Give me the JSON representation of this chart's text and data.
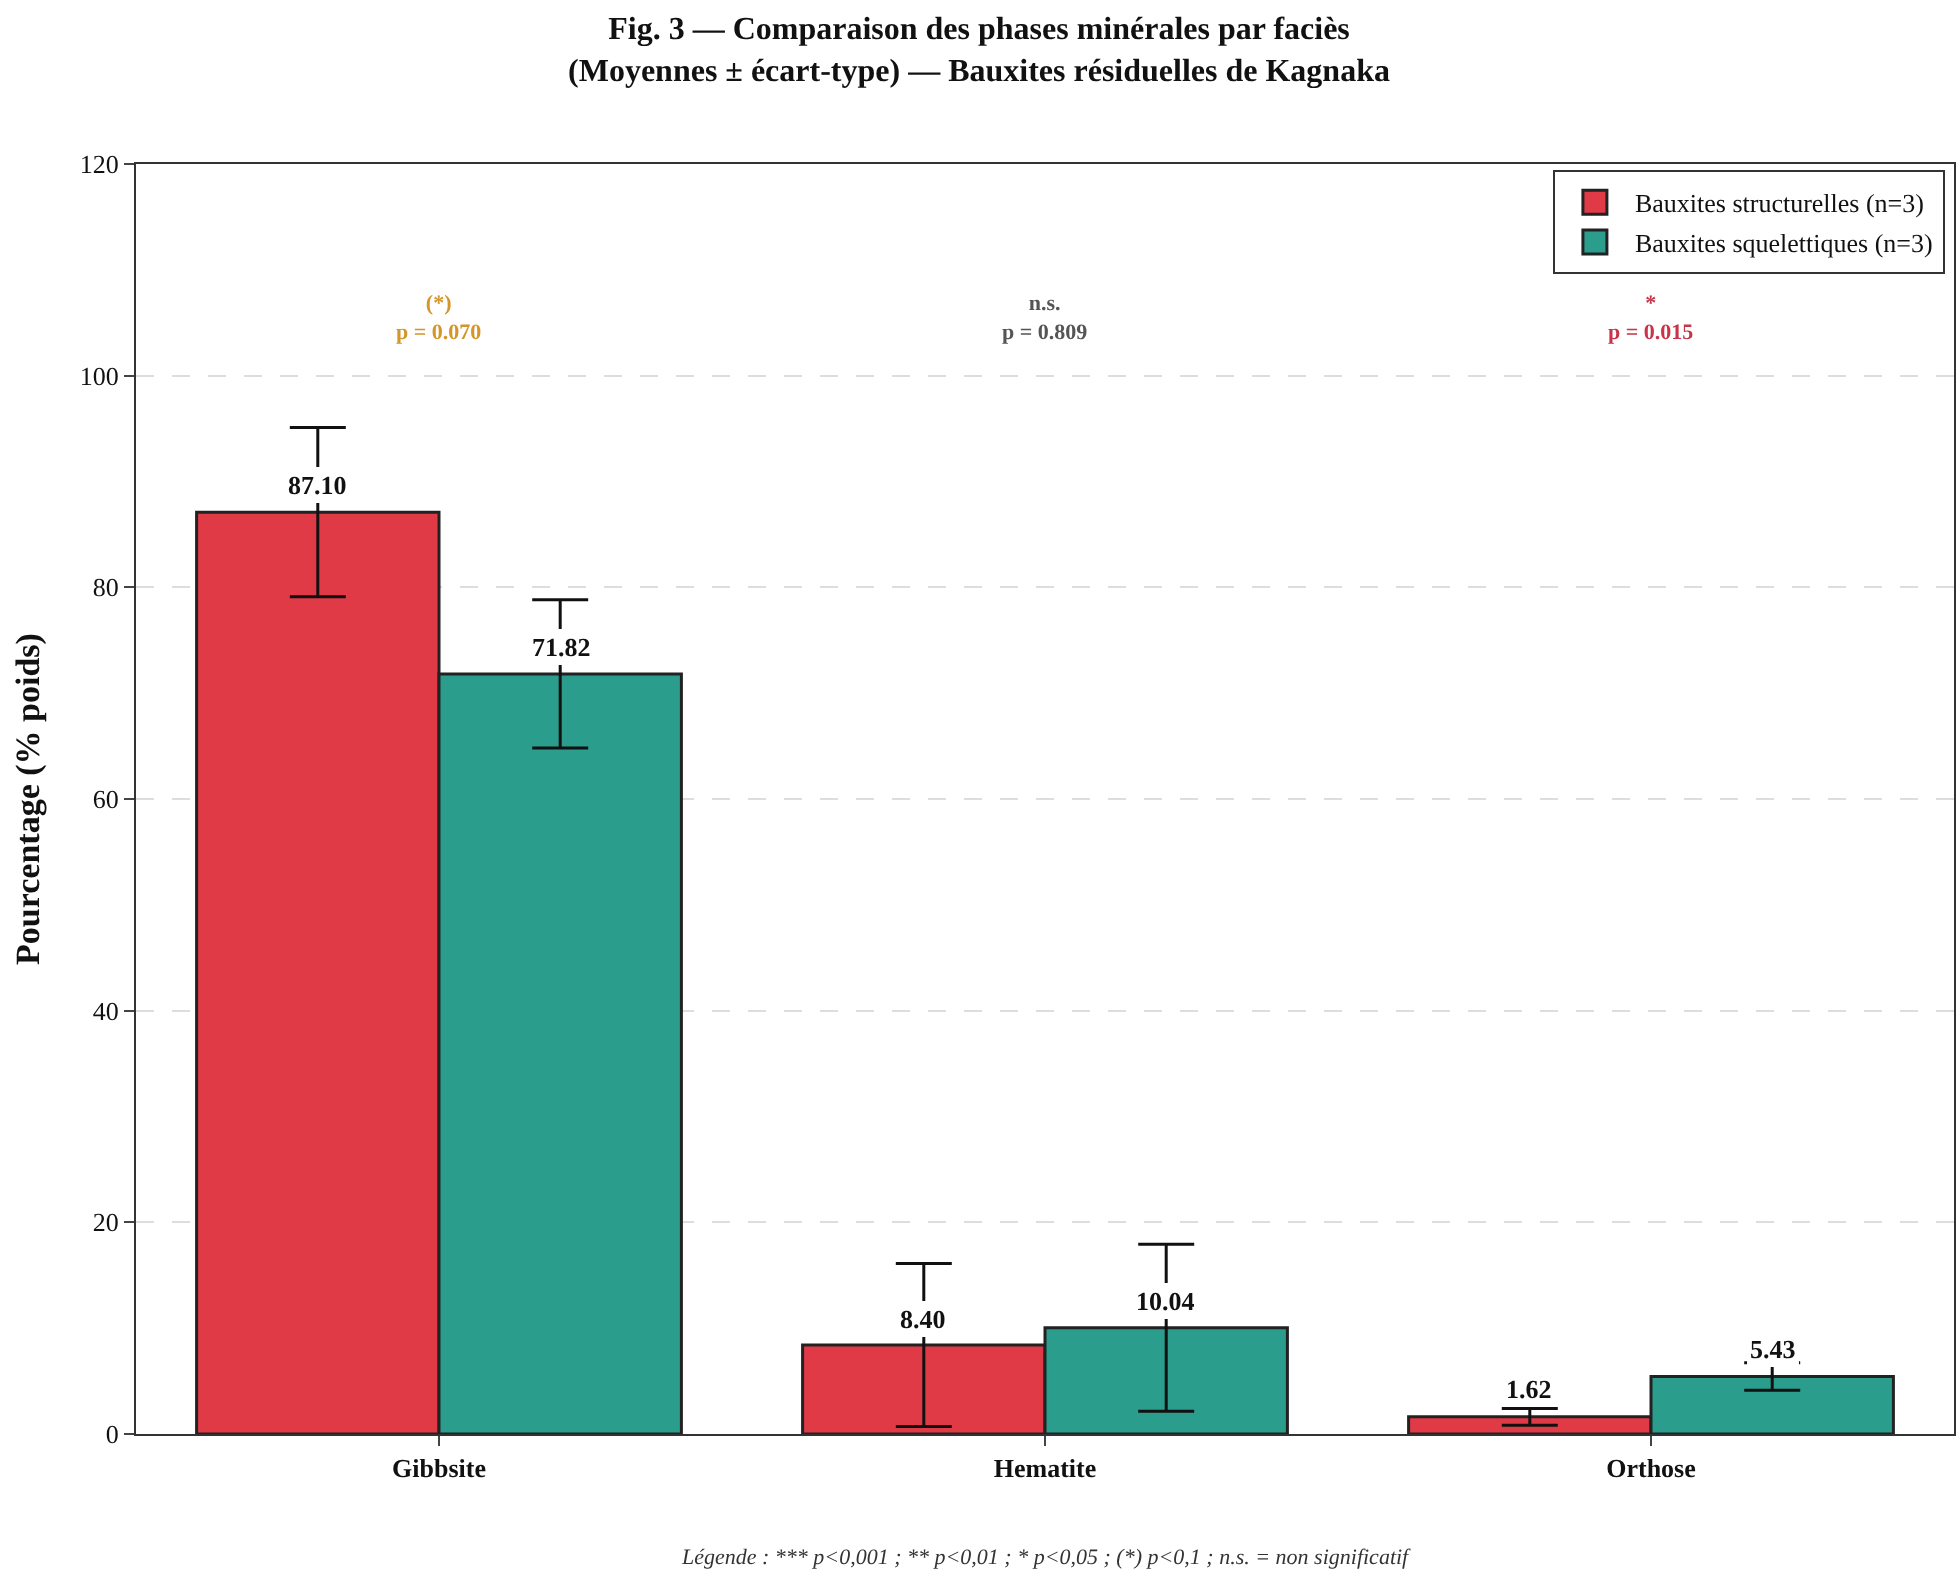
{
  "chart_data": {
    "type": "bar",
    "title": "Fig. 3 — Comparaison des phases minérales par faciès\n(Moyennes ± écart-type) — Bauxites résiduelles de Kagnaka",
    "ylabel": "Pourcentage (% poids)",
    "categories": [
      "Gibbsite",
      "Hematite",
      "Orthose"
    ],
    "series": [
      {
        "name": "Bauxites structurelles (n=3)",
        "color": "#e03a47",
        "values": [
          87.1,
          8.4,
          1.62
        ],
        "errors": [
          8.0,
          7.7,
          0.8
        ],
        "value_labels": [
          "87.10",
          "8.40",
          "1.62"
        ]
      },
      {
        "name": "Bauxites squelettiques (n=3)",
        "color": "#2a9d8c",
        "values": [
          71.82,
          10.04,
          5.43
        ],
        "errors": [
          7.0,
          7.9,
          1.3
        ],
        "value_labels": [
          "71.82",
          "10.04",
          "5.43"
        ]
      }
    ],
    "ylim": [
      0,
      120
    ],
    "yticks": [
      0,
      20,
      40,
      60,
      80,
      100,
      120
    ],
    "grid": "y",
    "legend": "top right",
    "annotations": [
      "(*)\np = 0.070",
      "n.s.\np = 0.809",
      "*\np = 0.015",
      "Légende : *** p<0,001 ; ** p<0,01 ; * p<0,05 ; (*) p<0,1 ; n.s. = non significatif"
    ]
  }
}
